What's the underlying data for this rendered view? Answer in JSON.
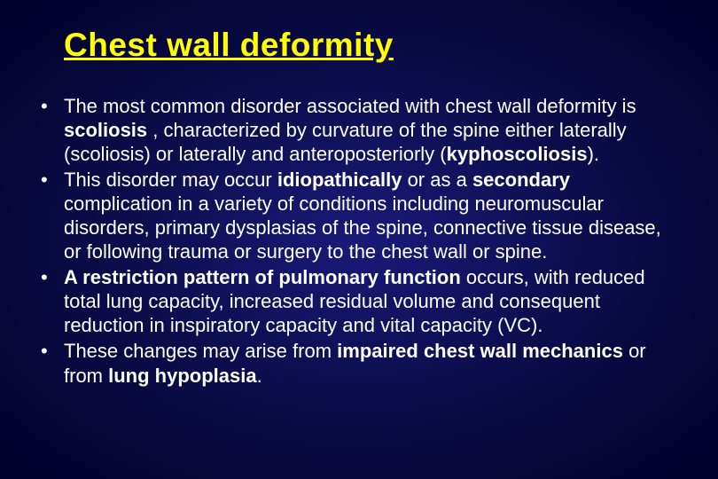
{
  "slide": {
    "title": "Chest wall deformity",
    "title_color": "#ffff00",
    "text_color": "#ffffff",
    "background_gradient": [
      "#1a1a7a",
      "#0d0d4d",
      "#000028"
    ],
    "font_family": "Arial",
    "title_fontsize": 37,
    "body_fontsize": 22,
    "bullets": [
      {
        "segments": [
          {
            "text": "The most common disorder associated with chest wall deformity is ",
            "bold": false
          },
          {
            "text": "scoliosis",
            "bold": true
          },
          {
            "text": " , characterized by curvature of the spine either laterally (scoliosis) or laterally and anteroposteriorly (",
            "bold": false
          },
          {
            "text": "kyphoscoliosis",
            "bold": true
          },
          {
            "text": ").",
            "bold": false
          }
        ]
      },
      {
        "segments": [
          {
            "text": "This disorder may occur ",
            "bold": false
          },
          {
            "text": "idiopathically",
            "bold": true
          },
          {
            "text": " or as a ",
            "bold": false
          },
          {
            "text": "secondary",
            "bold": true
          },
          {
            "text": " complication in a variety of conditions including neuromuscular disorders, primary dysplasias of the spine, connective tissue disease, or following trauma or surgery to the chest wall or spine.",
            "bold": false
          }
        ]
      },
      {
        "segments": [
          {
            "text": "A restriction pattern of pulmonary function",
            "bold": true
          },
          {
            "text": " occurs, with reduced total lung capacity, increased residual volume and consequent reduction in inspiratory capacity and vital capacity (VC).",
            "bold": false
          }
        ]
      },
      {
        "segments": [
          {
            "text": "These changes may arise from ",
            "bold": false
          },
          {
            "text": "impaired chest wall mechanics",
            "bold": true
          },
          {
            "text": " or from ",
            "bold": false
          },
          {
            "text": "lung hypoplasia",
            "bold": true
          },
          {
            "text": ".",
            "bold": false
          }
        ]
      }
    ]
  }
}
